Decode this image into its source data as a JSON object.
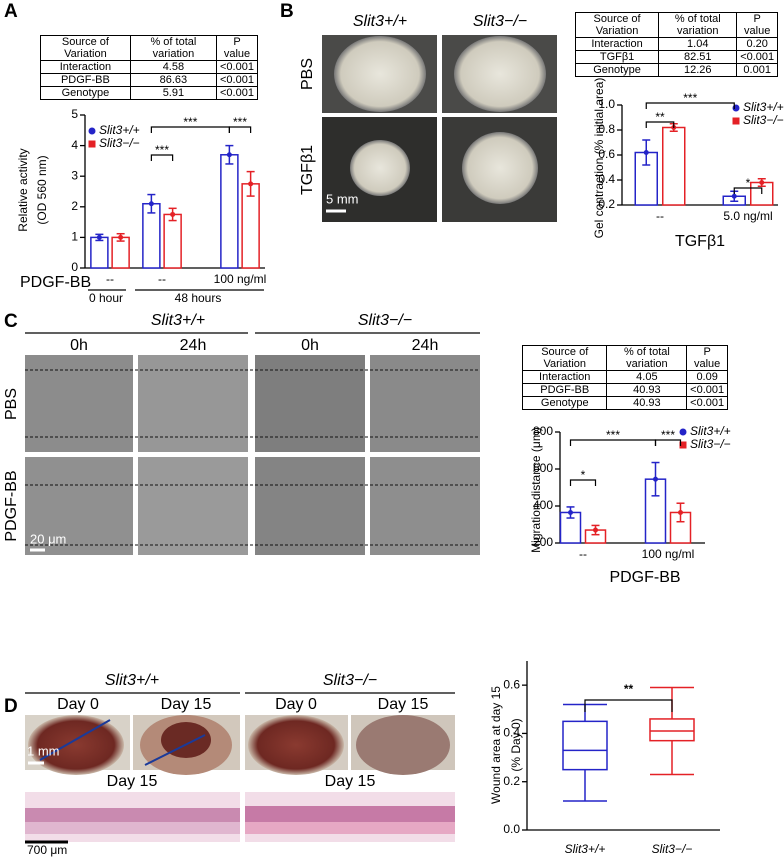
{
  "panel_letters": [
    "A",
    "B",
    "C",
    "D"
  ],
  "tables": [
    {
      "header": [
        "Source of Variation",
        "% of total variation",
        "P value"
      ],
      "rows": [
        [
          "Interaction",
          "4.58",
          "<0.001"
        ],
        [
          "PDGF-BB",
          "86.63",
          "<0.001"
        ],
        [
          "Genotype",
          "5.91",
          "<0.001"
        ]
      ]
    },
    {
      "header": [
        "Source of Variation",
        "% of total variation",
        "P value"
      ],
      "rows": [
        [
          "Interaction",
          "1.04",
          "0.20"
        ],
        [
          "TGFβ1",
          "82.51",
          "<0.001"
        ],
        [
          "Genotype",
          "12.26",
          "0.001"
        ]
      ]
    },
    {
      "header": [
        "Source of Variation",
        "% of total variation",
        "P value"
      ],
      "rows": [
        [
          "Interaction",
          "4.05",
          "0.09"
        ],
        [
          "PDGF-BB",
          "40.93",
          "<0.001"
        ],
        [
          "Genotype",
          "40.93",
          "<0.001"
        ]
      ]
    }
  ],
  "images": {
    "b": {
      "columns": [
        "Slit3+/+",
        "Slit3−/−"
      ],
      "rows": [
        "PBS",
        "TGFβ1"
      ],
      "scale": "5 mm"
    },
    "c": {
      "genotypes": [
        "Slit3+/+",
        "Slit3−/−"
      ],
      "times": [
        "0h",
        "24h",
        "0h",
        "24h"
      ],
      "rows": [
        "PBS",
        "PDGF-BB"
      ],
      "scale": "20 μm"
    },
    "d": {
      "genotypes": [
        "Slit3+/+",
        "Slit3−/−"
      ],
      "days": [
        "Day 0",
        "Day 15",
        "Day 0",
        "Day 15"
      ],
      "scale": "1 mm",
      "histology": [
        "Day 15",
        "Day 15"
      ],
      "histology_scale": "700 μm"
    }
  },
  "chart_data": [
    {
      "type": "bar",
      "ylabel": [
        "Relative activity",
        "(OD 560 nm)"
      ],
      "xlabel": "PDGF-BB",
      "groups": [
        "0 hour",
        "48 hours"
      ],
      "categories": [
        "--",
        "--",
        "100 ng/ml"
      ],
      "ylim": [
        0,
        5
      ],
      "yticks": [
        0,
        1,
        2,
        3,
        4,
        5
      ],
      "series": [
        {
          "name": "Slit3+/+",
          "color": "#2424c8",
          "values": [
            1.0,
            2.1,
            3.7
          ],
          "errors": [
            0.1,
            0.3,
            0.3
          ]
        },
        {
          "name": "Slit3−/−",
          "color": "#e42126",
          "values": [
            1.0,
            1.75,
            2.75
          ],
          "errors": [
            0.12,
            0.2,
            0.4
          ]
        }
      ],
      "annotations": [
        "***",
        "***",
        "***"
      ]
    },
    {
      "type": "bar",
      "ylabel": "Gel contraction (% initial area)",
      "xlabel": "TGFβ1",
      "categories": [
        "--",
        "5.0 ng/ml"
      ],
      "ylim": [
        0.2,
        1.0
      ],
      "yticks": [
        0.2,
        0.4,
        0.6,
        0.8,
        {
          "value": 1.0,
          "label": "1.0"
        }
      ],
      "series": [
        {
          "name": "Slit3+/+",
          "color": "#2424c8",
          "values": [
            0.62,
            0.27
          ],
          "errors": [
            0.1,
            0.04
          ]
        },
        {
          "name": "Slit3−/−",
          "color": "#e42126",
          "values": [
            0.82,
            0.38
          ],
          "errors": [
            0.03,
            0.03
          ]
        }
      ],
      "annotations": [
        "**",
        "***",
        "*"
      ]
    },
    {
      "type": "bar",
      "ylabel": "Migration distance (μm)",
      "xlabel": "PDGF-BB",
      "categories": [
        "--",
        "100 ng/ml"
      ],
      "ylim": [
        200,
        800
      ],
      "yticks": [
        200,
        400,
        600,
        800
      ],
      "series": [
        {
          "name": "Slit3+/+",
          "color": "#2424c8",
          "values": [
            365,
            545
          ],
          "errors": [
            30,
            90
          ]
        },
        {
          "name": "Slit3−/−",
          "color": "#e42126",
          "values": [
            270,
            365
          ],
          "errors": [
            25,
            50
          ]
        }
      ],
      "annotations": [
        "*",
        "***",
        "***"
      ]
    },
    {
      "type": "box",
      "ylabel": [
        "Wound area at day 15",
        "(% Day 0)"
      ],
      "categories": [
        "Slit3+/+",
        "Slit3−/−"
      ],
      "ylim": [
        0,
        0.7
      ],
      "yticks": [
        {
          "value": 0,
          "label": "0.0"
        },
        0.2,
        0.4,
        0.6
      ],
      "boxes": [
        {
          "color": "#2424c8",
          "min": 0.12,
          "q1": 0.25,
          "median": 0.33,
          "q3": 0.45,
          "max": 0.52
        },
        {
          "color": "#e42126",
          "min": 0.23,
          "q1": 0.37,
          "median": 0.41,
          "q3": 0.46,
          "max": 0.59
        }
      ],
      "annotations": [
        "**"
      ]
    }
  ]
}
